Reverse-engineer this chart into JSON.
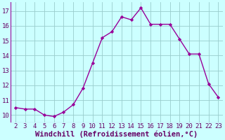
{
  "x": [
    2,
    3,
    4,
    5,
    6,
    7,
    8,
    9,
    10,
    11,
    12,
    13,
    14,
    15,
    16,
    17,
    18,
    19,
    20,
    21,
    22,
    23
  ],
  "y": [
    10.5,
    10.4,
    10.4,
    10.0,
    9.9,
    10.2,
    10.7,
    11.8,
    13.5,
    15.2,
    15.6,
    16.6,
    16.4,
    17.2,
    16.1,
    16.1,
    16.1,
    15.1,
    14.1,
    14.1,
    12.1,
    11.2
  ],
  "line_color": "#990099",
  "marker": "D",
  "marker_size": 2.2,
  "bg_color": "#ccffff",
  "grid_color": "#99cccc",
  "xlabel": "Windchill (Refroidissement éolien,°C)",
  "xlabel_color": "#660066",
  "xlabel_fontsize": 7.5,
  "tick_color": "#660066",
  "tick_fontsize": 6.5,
  "ylim": [
    9.5,
    17.6
  ],
  "yticks": [
    10,
    11,
    12,
    13,
    14,
    15,
    16,
    17
  ],
  "xlim": [
    1.5,
    23.5
  ],
  "xticks": [
    2,
    3,
    4,
    5,
    6,
    7,
    8,
    9,
    10,
    11,
    12,
    13,
    14,
    15,
    16,
    17,
    18,
    19,
    20,
    21,
    22,
    23
  ],
  "linewidth": 1.0
}
